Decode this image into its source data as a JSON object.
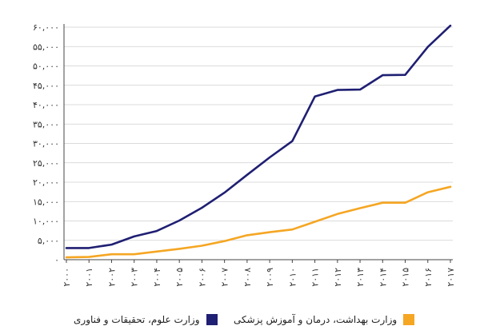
{
  "chart_data": {
    "type": "line",
    "x": [
      "2000",
      "2001",
      "2002",
      "2003",
      "2004",
      "2005",
      "2006",
      "2007",
      "2008",
      "2009",
      "2010",
      "2011",
      "2012",
      "2013",
      "2014",
      "2015",
      "2016",
      "2017"
    ],
    "x_tick_labels": [
      "۲۰۰۰",
      "۲۰۰۱",
      "۲۰۰۲",
      "۲۰۰۳",
      "۲۰۰۴",
      "۲۰۰۵",
      "۲۰۰۶",
      "۲۰۰۷",
      "۲۰۰۸",
      "۲۰۰۹",
      "۲۰۱۰",
      "۲۰۱۱",
      "۲۰۱۲",
      "۲۰۱۳",
      "۲۰۱۴",
      "۲۰۱۵",
      "۲۰۱۶",
      "۲۰۱۷"
    ],
    "y_ticks": [
      0,
      5000,
      10000,
      15000,
      20000,
      25000,
      30000,
      35000,
      40000,
      45000,
      50000,
      55000,
      60000
    ],
    "y_tick_labels": [
      "۰",
      "۵,۰۰۰",
      "۱۰,۰۰۰",
      "۱۵,۰۰۰",
      "۲۰,۰۰۰",
      "۲۵,۰۰۰",
      "۳۰,۰۰۰",
      "۳۵,۰۰۰",
      "۴۰,۰۰۰",
      "۴۵,۰۰۰",
      "۵۰,۰۰۰",
      "۵۵,۰۰۰",
      "۶۰,۰۰۰"
    ],
    "ylim": [
      0,
      60000
    ],
    "grid": "horizontal",
    "legend_position": "bottom",
    "series": [
      {
        "name": "وزارت علوم، تحقیقات و فناوری",
        "color": "#1f1f73",
        "values": [
          3000,
          3000,
          3900,
          6000,
          7400,
          10100,
          13400,
          17300,
          21900,
          26400,
          30600,
          42100,
          43800,
          43900,
          47600,
          47700,
          54900,
          60400
        ]
      },
      {
        "name": "وزارت بهداشت، درمان و آموزش پزشکی",
        "color": "#f5a623",
        "values": [
          600,
          700,
          1400,
          1400,
          2100,
          2800,
          3600,
          4800,
          6300,
          7100,
          7800,
          9800,
          11800,
          13300,
          14700,
          14700,
          17400,
          18800
        ]
      }
    ]
  }
}
